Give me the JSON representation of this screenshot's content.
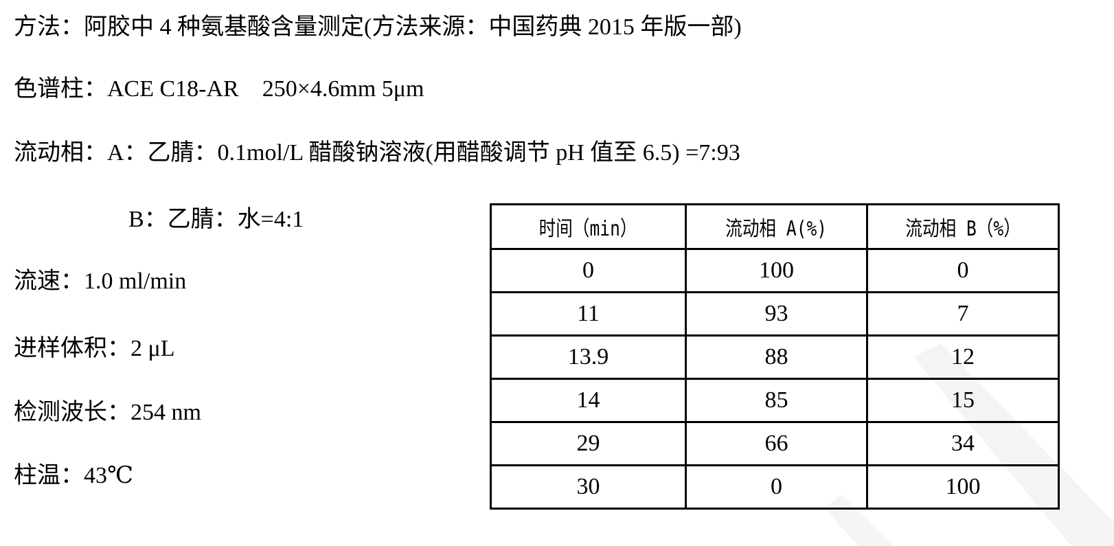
{
  "lines": {
    "method": "方法：阿胶中 4 种氨基酸含量测定(方法来源：中国药典 2015 年版一部)",
    "column": "色谱柱：ACE C18-AR    250×4.6mm 5μm",
    "mobile_phase_a": "流动相：A：乙腈：0.1mol/L 醋酸钠溶液(用醋酸调节 pH 值至 6.5) =7:93",
    "mobile_phase_b": "B：乙腈：水=4:1",
    "flow_rate": "流速：1.0 ml/min",
    "injection_volume": "进样体积：2 μL",
    "wavelength": "检测波长：254 nm",
    "column_temp": "柱温：43℃"
  },
  "gradient_table": {
    "headers": [
      "时间（min）",
      "流动相 A(%)",
      "流动相 B（%）"
    ],
    "rows": [
      [
        "0",
        "100",
        "0"
      ],
      [
        "11",
        "93",
        "7"
      ],
      [
        "13.9",
        "88",
        "12"
      ],
      [
        "14",
        "85",
        "15"
      ],
      [
        "29",
        "66",
        "34"
      ],
      [
        "30",
        "0",
        "100"
      ]
    ]
  }
}
